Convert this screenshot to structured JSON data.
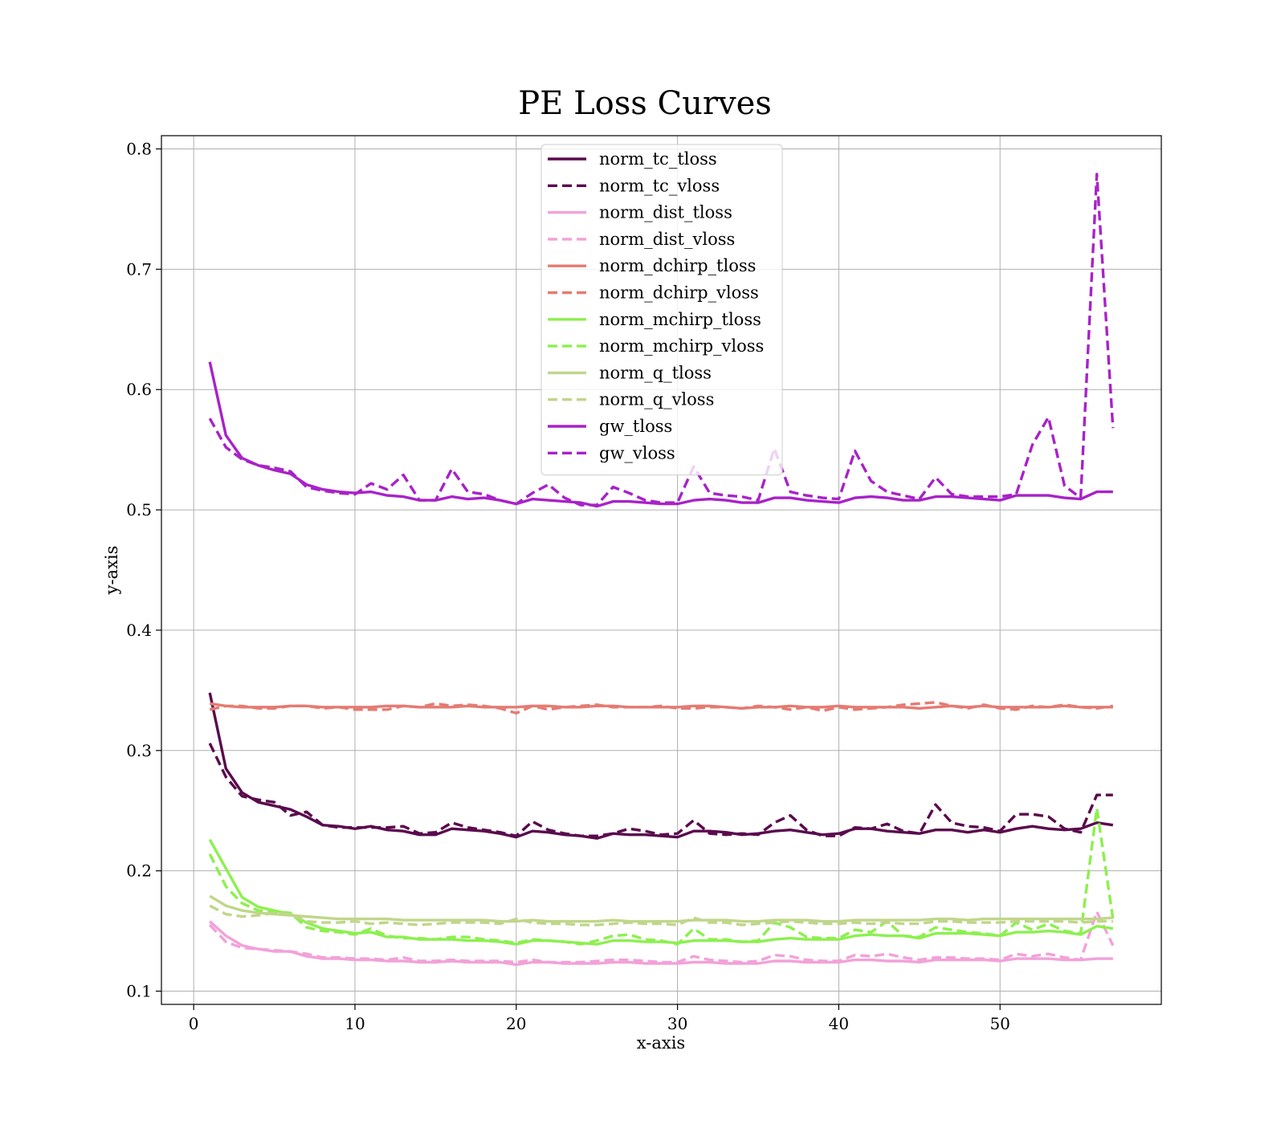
{
  "chart_data": {
    "type": "line",
    "title": "PE Loss Curves",
    "xlabel": "x-axis",
    "ylabel": "y-axis",
    "xlim": [
      -2,
      60
    ],
    "ylim": [
      0.089,
      0.811
    ],
    "xticks": [
      0,
      10,
      20,
      30,
      40,
      50
    ],
    "yticks": [
      0.1,
      0.2,
      0.3,
      0.4,
      0.5,
      0.6,
      0.7,
      0.8
    ],
    "xtick_labels": [
      "0",
      "10",
      "20",
      "30",
      "40",
      "50"
    ],
    "ytick_labels": [
      "0.1",
      "0.2",
      "0.3",
      "0.4",
      "0.5",
      "0.6",
      "0.7",
      "0.8"
    ],
    "grid": true,
    "legend_position": "upper-center",
    "x": [
      1,
      2,
      3,
      4,
      5,
      6,
      7,
      8,
      9,
      10,
      11,
      12,
      13,
      14,
      15,
      16,
      17,
      18,
      19,
      20,
      21,
      22,
      23,
      24,
      25,
      26,
      27,
      28,
      29,
      30,
      31,
      32,
      33,
      34,
      35,
      36,
      37,
      38,
      39,
      40,
      41,
      42,
      43,
      44,
      45,
      46,
      47,
      48,
      49,
      50,
      51,
      52,
      53,
      54,
      55,
      56,
      57
    ],
    "series": [
      {
        "name": "norm_tc_tloss",
        "color": "#5a0a4d",
        "dash": "solid",
        "values": [
          0.348,
          0.285,
          0.265,
          0.257,
          0.254,
          0.251,
          0.245,
          0.238,
          0.237,
          0.235,
          0.237,
          0.234,
          0.233,
          0.23,
          0.23,
          0.235,
          0.234,
          0.233,
          0.231,
          0.228,
          0.233,
          0.232,
          0.23,
          0.229,
          0.227,
          0.231,
          0.23,
          0.23,
          0.229,
          0.228,
          0.233,
          0.233,
          0.232,
          0.23,
          0.231,
          0.233,
          0.234,
          0.232,
          0.23,
          0.231,
          0.235,
          0.235,
          0.233,
          0.232,
          0.231,
          0.234,
          0.234,
          0.232,
          0.234,
          0.232,
          0.235,
          0.237,
          0.235,
          0.234,
          0.235,
          0.24,
          0.238
        ]
      },
      {
        "name": "norm_tc_vloss",
        "color": "#5a0a4d",
        "dash": "dashed",
        "values": [
          0.306,
          0.278,
          0.262,
          0.259,
          0.257,
          0.246,
          0.249,
          0.238,
          0.236,
          0.236,
          0.236,
          0.236,
          0.237,
          0.231,
          0.232,
          0.24,
          0.236,
          0.234,
          0.232,
          0.229,
          0.241,
          0.234,
          0.231,
          0.229,
          0.229,
          0.231,
          0.235,
          0.233,
          0.23,
          0.231,
          0.242,
          0.231,
          0.23,
          0.231,
          0.23,
          0.24,
          0.246,
          0.234,
          0.229,
          0.229,
          0.236,
          0.235,
          0.239,
          0.233,
          0.231,
          0.255,
          0.24,
          0.237,
          0.236,
          0.233,
          0.247,
          0.247,
          0.245,
          0.235,
          0.232,
          0.263,
          0.263
        ]
      },
      {
        "name": "norm_dist_tloss",
        "color": "#f2a1d9",
        "dash": "solid",
        "values": [
          0.158,
          0.146,
          0.138,
          0.135,
          0.133,
          0.133,
          0.129,
          0.127,
          0.127,
          0.126,
          0.126,
          0.125,
          0.125,
          0.124,
          0.124,
          0.125,
          0.124,
          0.124,
          0.124,
          0.122,
          0.124,
          0.124,
          0.123,
          0.123,
          0.123,
          0.124,
          0.124,
          0.123,
          0.123,
          0.123,
          0.124,
          0.124,
          0.123,
          0.123,
          0.123,
          0.125,
          0.125,
          0.124,
          0.124,
          0.124,
          0.126,
          0.126,
          0.125,
          0.125,
          0.124,
          0.126,
          0.126,
          0.126,
          0.126,
          0.125,
          0.127,
          0.127,
          0.127,
          0.126,
          0.126,
          0.127,
          0.127
        ]
      },
      {
        "name": "norm_dist_vloss",
        "color": "#f2a1d9",
        "dash": "dashed",
        "values": [
          0.155,
          0.141,
          0.136,
          0.135,
          0.134,
          0.133,
          0.131,
          0.128,
          0.128,
          0.127,
          0.127,
          0.126,
          0.128,
          0.125,
          0.125,
          0.126,
          0.125,
          0.125,
          0.125,
          0.124,
          0.126,
          0.124,
          0.124,
          0.124,
          0.125,
          0.126,
          0.126,
          0.125,
          0.124,
          0.124,
          0.129,
          0.126,
          0.125,
          0.124,
          0.125,
          0.13,
          0.129,
          0.126,
          0.125,
          0.125,
          0.13,
          0.129,
          0.131,
          0.128,
          0.126,
          0.128,
          0.128,
          0.127,
          0.127,
          0.126,
          0.131,
          0.129,
          0.131,
          0.128,
          0.126,
          0.166,
          0.138
        ]
      },
      {
        "name": "norm_dchirp_tloss",
        "color": "#e57b72",
        "dash": "solid",
        "values": [
          0.339,
          0.337,
          0.336,
          0.336,
          0.336,
          0.337,
          0.337,
          0.336,
          0.336,
          0.336,
          0.336,
          0.337,
          0.337,
          0.336,
          0.336,
          0.336,
          0.337,
          0.336,
          0.336,
          0.336,
          0.337,
          0.337,
          0.336,
          0.336,
          0.337,
          0.337,
          0.336,
          0.336,
          0.336,
          0.336,
          0.337,
          0.337,
          0.336,
          0.335,
          0.336,
          0.336,
          0.337,
          0.336,
          0.336,
          0.337,
          0.336,
          0.336,
          0.336,
          0.336,
          0.335,
          0.336,
          0.337,
          0.336,
          0.337,
          0.336,
          0.336,
          0.336,
          0.336,
          0.337,
          0.336,
          0.336,
          0.336
        ]
      },
      {
        "name": "norm_dchirp_vloss",
        "color": "#e57b72",
        "dash": "dashed",
        "values": [
          0.334,
          0.337,
          0.337,
          0.335,
          0.335,
          0.337,
          0.337,
          0.335,
          0.336,
          0.334,
          0.334,
          0.334,
          0.337,
          0.336,
          0.339,
          0.337,
          0.338,
          0.337,
          0.335,
          0.331,
          0.337,
          0.334,
          0.336,
          0.337,
          0.338,
          0.336,
          0.336,
          0.336,
          0.337,
          0.335,
          0.335,
          0.336,
          0.336,
          0.335,
          0.337,
          0.336,
          0.334,
          0.336,
          0.333,
          0.336,
          0.334,
          0.335,
          0.336,
          0.338,
          0.339,
          0.34,
          0.337,
          0.335,
          0.338,
          0.335,
          0.334,
          0.337,
          0.336,
          0.338,
          0.336,
          0.335,
          0.337
        ]
      },
      {
        "name": "norm_mchirp_tloss",
        "color": "#8cf04e",
        "dash": "solid",
        "values": [
          0.226,
          0.202,
          0.178,
          0.17,
          0.167,
          0.164,
          0.157,
          0.152,
          0.15,
          0.148,
          0.149,
          0.145,
          0.145,
          0.143,
          0.143,
          0.143,
          0.142,
          0.142,
          0.141,
          0.139,
          0.142,
          0.142,
          0.141,
          0.14,
          0.139,
          0.142,
          0.142,
          0.141,
          0.141,
          0.14,
          0.142,
          0.142,
          0.142,
          0.141,
          0.141,
          0.143,
          0.144,
          0.143,
          0.143,
          0.143,
          0.146,
          0.147,
          0.146,
          0.146,
          0.144,
          0.148,
          0.148,
          0.148,
          0.147,
          0.146,
          0.149,
          0.149,
          0.15,
          0.149,
          0.147,
          0.154,
          0.152
        ]
      },
      {
        "name": "norm_mchirp_vloss",
        "color": "#8cf04e",
        "dash": "dashed",
        "values": [
          0.214,
          0.187,
          0.173,
          0.167,
          0.166,
          0.165,
          0.153,
          0.15,
          0.149,
          0.147,
          0.152,
          0.146,
          0.144,
          0.144,
          0.143,
          0.145,
          0.145,
          0.143,
          0.142,
          0.14,
          0.143,
          0.142,
          0.141,
          0.139,
          0.142,
          0.146,
          0.147,
          0.143,
          0.142,
          0.139,
          0.152,
          0.143,
          0.143,
          0.141,
          0.142,
          0.157,
          0.153,
          0.145,
          0.144,
          0.144,
          0.151,
          0.149,
          0.158,
          0.146,
          0.145,
          0.153,
          0.151,
          0.149,
          0.148,
          0.146,
          0.157,
          0.151,
          0.156,
          0.15,
          0.148,
          0.252,
          0.16
        ]
      },
      {
        "name": "norm_q_tloss",
        "color": "#c0d68a",
        "dash": "solid",
        "values": [
          0.179,
          0.171,
          0.167,
          0.165,
          0.164,
          0.163,
          0.162,
          0.161,
          0.16,
          0.16,
          0.16,
          0.16,
          0.159,
          0.159,
          0.159,
          0.159,
          0.159,
          0.159,
          0.158,
          0.158,
          0.159,
          0.158,
          0.158,
          0.158,
          0.158,
          0.159,
          0.158,
          0.158,
          0.158,
          0.158,
          0.159,
          0.159,
          0.159,
          0.158,
          0.158,
          0.159,
          0.159,
          0.159,
          0.158,
          0.158,
          0.159,
          0.159,
          0.159,
          0.159,
          0.159,
          0.16,
          0.16,
          0.159,
          0.16,
          0.16,
          0.16,
          0.16,
          0.16,
          0.16,
          0.16,
          0.16,
          0.161
        ]
      },
      {
        "name": "norm_q_vloss",
        "color": "#c0d68a",
        "dash": "dashed",
        "values": [
          0.171,
          0.164,
          0.162,
          0.163,
          0.165,
          0.164,
          0.158,
          0.157,
          0.157,
          0.158,
          0.156,
          0.157,
          0.156,
          0.155,
          0.156,
          0.157,
          0.157,
          0.157,
          0.156,
          0.16,
          0.157,
          0.156,
          0.156,
          0.155,
          0.155,
          0.156,
          0.157,
          0.156,
          0.156,
          0.155,
          0.161,
          0.157,
          0.157,
          0.155,
          0.156,
          0.157,
          0.158,
          0.157,
          0.156,
          0.156,
          0.157,
          0.156,
          0.157,
          0.156,
          0.156,
          0.158,
          0.158,
          0.157,
          0.157,
          0.157,
          0.158,
          0.158,
          0.158,
          0.158,
          0.157,
          0.158,
          0.158
        ]
      },
      {
        "name": "gw_tloss",
        "color": "#a822c8",
        "dash": "solid",
        "values": [
          0.623,
          0.562,
          0.543,
          0.537,
          0.533,
          0.53,
          0.521,
          0.517,
          0.515,
          0.514,
          0.515,
          0.512,
          0.511,
          0.508,
          0.508,
          0.511,
          0.509,
          0.51,
          0.508,
          0.505,
          0.509,
          0.508,
          0.507,
          0.506,
          0.503,
          0.507,
          0.507,
          0.506,
          0.505,
          0.505,
          0.508,
          0.509,
          0.508,
          0.506,
          0.506,
          0.51,
          0.51,
          0.508,
          0.507,
          0.506,
          0.51,
          0.511,
          0.51,
          0.508,
          0.508,
          0.511,
          0.511,
          0.51,
          0.509,
          0.508,
          0.512,
          0.512,
          0.512,
          0.51,
          0.509,
          0.515,
          0.515
        ]
      },
      {
        "name": "gw_vloss",
        "color": "#a822c8",
        "dash": "dashed",
        "values": [
          0.576,
          0.552,
          0.542,
          0.537,
          0.535,
          0.532,
          0.519,
          0.516,
          0.514,
          0.513,
          0.522,
          0.517,
          0.529,
          0.508,
          0.508,
          0.534,
          0.515,
          0.513,
          0.508,
          0.505,
          0.514,
          0.521,
          0.51,
          0.504,
          0.504,
          0.519,
          0.514,
          0.508,
          0.506,
          0.506,
          0.536,
          0.514,
          0.512,
          0.511,
          0.508,
          0.551,
          0.515,
          0.512,
          0.51,
          0.509,
          0.549,
          0.524,
          0.515,
          0.512,
          0.509,
          0.527,
          0.513,
          0.511,
          0.511,
          0.511,
          0.513,
          0.554,
          0.577,
          0.52,
          0.51,
          0.779,
          0.568
        ]
      }
    ]
  }
}
